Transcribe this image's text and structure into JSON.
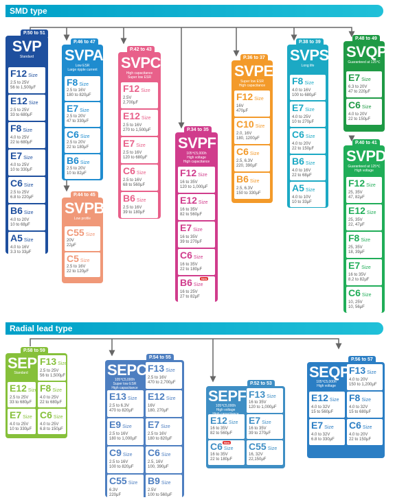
{
  "smd": {
    "title": "SMD type"
  },
  "radial": {
    "title": "Radial lead type"
  },
  "svp": {
    "name": "SVP",
    "pages": "P.50 to 51",
    "desc": "Standard",
    "items": [
      [
        "F12",
        "2.5 to 25V\n56 to 1,500μF"
      ],
      [
        "E12",
        "2.5 to 25V\n33 to 680μF"
      ],
      [
        "F8",
        "4.0 to 25V\n22 to 680μF"
      ],
      [
        "E7",
        "4.0 to 25V\n10 to 330μF"
      ],
      [
        "C6",
        "2.5 to 25V\n6.8 to 220μF"
      ],
      [
        "B6",
        "4.0 to 20V\n10 to 68μF"
      ],
      [
        "A5",
        "4.0 to 16V\n3.3 to 33μF"
      ]
    ]
  },
  "svpa": {
    "name": "SVPA",
    "pages": "P.46 to 47",
    "desc": "Low ESR\nLarge ripple current",
    "items": [
      [
        "F8",
        "2.5 to 16V\n180 to 820μF"
      ],
      [
        "E7",
        "2.5 to 20V\n47 to 330μF"
      ],
      [
        "C6",
        "2.5 to 20V\n22 to 180μF"
      ],
      [
        "B6",
        "2.5 to 20V\n10 to 82μF"
      ]
    ]
  },
  "svpb": {
    "name": "SVPB",
    "pages": "P.44 to 45",
    "desc": "Low profile",
    "items": [
      [
        "C55",
        "20V\n22μF"
      ],
      [
        "C5",
        "2.5 to 16V\n22 to 120μF"
      ]
    ]
  },
  "svpc": {
    "name": "SVPC",
    "pages": "P.42 to 43",
    "desc": "High capacitance\nSuper low ESR",
    "items": [
      [
        "F12",
        "2.5V\n2,700μF"
      ],
      [
        "E12",
        "2.5 to 16V\n270 to 1,500μF"
      ],
      [
        "E7",
        "2.5 to 16V\n120 to 680μF"
      ],
      [
        "C6",
        "2.5 to 16V\n68 to 560μF"
      ],
      [
        "B6",
        "2.5 to 16V\n39 to 180μF"
      ]
    ]
  },
  "svpf": {
    "name": "SVPF",
    "pages": "P.34 to 35",
    "desc": "105℃5,000h\nHigh voltage\nHigh capacitance",
    "new": "New",
    "items": [
      [
        "F12",
        "16 to 35V\n120 to 1,000μF"
      ],
      [
        "E12",
        "16 to 35V\n82 to 560μF"
      ],
      [
        "E7",
        "16 to 35V\n39 to 270μF"
      ],
      [
        "C6",
        "16 to 35V\n22 to 180μF"
      ],
      [
        "B6",
        "16 to 25V\n27 to 82μF"
      ]
    ]
  },
  "svpe": {
    "name": "SVPE",
    "pages": "P.36 to 37",
    "desc": "Super low ESR\nHigh capacitance",
    "items": [
      [
        "F12",
        "16V\n470μF"
      ],
      [
        "C10",
        "2.0, 16V\n180, 1200μF"
      ],
      [
        "C6",
        "2.5, 6.3V\n220, 390μF"
      ],
      [
        "B6",
        "2.5, 6.3V\n150 to 330μF"
      ]
    ]
  },
  "svps": {
    "name": "SVPS",
    "pages": "P.38 to 39",
    "desc": "Long life",
    "items": [
      [
        "F8",
        "4.0 to 16V\n100 to 680μF"
      ],
      [
        "E7",
        "4.0 to 25V\n10 to 270μF"
      ],
      [
        "C6",
        "4.0 to 20V\n22 to 150μF"
      ],
      [
        "B6",
        "4.0 to 16V\n22 to 68μF"
      ],
      [
        "A5",
        "4.0 to 10V\n10 to 33μF"
      ]
    ]
  },
  "svqp": {
    "name": "SVQP",
    "pages": "P.48 to 49",
    "desc": "Guaranteed at 125℃",
    "items": [
      [
        "E7",
        "6.3 to 20V\n47 to 220μF"
      ],
      [
        "C6",
        "4.0 to 20V\n22 to 150μF"
      ]
    ]
  },
  "svpd": {
    "name": "SVPD",
    "pages": "P.40 to 41",
    "desc": "Guaranteed at 125℃\nHigh voltage",
    "items": [
      [
        "F12",
        "25, 35V\n47, 82μF"
      ],
      [
        "E12",
        "25, 35V\n22, 47μF"
      ],
      [
        "F8",
        "25, 35V\n18, 39μF"
      ],
      [
        "E7",
        "16 to 35V\n8.2 to 82μF"
      ],
      [
        "C6",
        "10, 25V\n10, 56μF"
      ]
    ]
  },
  "sep": {
    "name": "SEP",
    "pages": "P.58 to 59",
    "desc": "Standard",
    "items": [
      [
        "F13",
        "2.5 to 25V\n56 to 1,500μF"
      ],
      [
        "E12",
        "2.5 to 25V\n33 to 680μF"
      ],
      [
        "F8",
        "4.0 to 25V\n22 to 680μF"
      ],
      [
        "E7",
        "4.0 to 25V\n10 to 330μF"
      ],
      [
        "C6",
        "4.0 to 25V\n6.8 to 150μF"
      ]
    ]
  },
  "sepc": {
    "name": "SEPC",
    "pages": "P.54 to 55",
    "desc": "105℃5,000h\nSuper low ESR\nHigh capacitance",
    "items": [
      [
        "F13",
        "2.5 to 16V\n470 to 2,700μF"
      ],
      [
        "E13",
        "2.5 to 6.3V\n470 to 820μF"
      ],
      [
        "E12",
        "16V\n180, 270μF"
      ],
      [
        "E9",
        "2.5 to 16V\n180 to 1,000μF"
      ],
      [
        "E7",
        "2.5 to 16V\n180 to 820μF"
      ],
      [
        "C9",
        "2.5 to 16V\n100 to 820μF"
      ],
      [
        "C6",
        "2.5, 16V\n100, 390μF"
      ],
      [
        "C55",
        "6.3V\n220μF"
      ],
      [
        "B9",
        "2.5V\n100 to 560μF"
      ]
    ]
  },
  "sepf": {
    "name": "SEPF",
    "pages": "P.52 to 53",
    "desc": "105℃5,000h\nHigh voltage\nHigh capacitance",
    "new": "New",
    "items": [
      [
        "F13",
        "16 to 35V\n120 to 1,000μF"
      ],
      [
        "E12",
        "16 to 35V\n82 to 560μF"
      ],
      [
        "E7",
        "16 to 35V\n39 to 270μF"
      ],
      [
        "C6",
        "16 to 35V\n22 to 180μF"
      ],
      [
        "C55",
        "16, 32V\n22,150μF"
      ]
    ]
  },
  "seqp": {
    "name": "SEQP",
    "pages": "P.56 to 57",
    "desc": "105℃5,000h\nHigh voltage",
    "items": [
      [
        "F13",
        "4.0 to 20V\n150 to 1,200μF"
      ],
      [
        "E12",
        "4.0 to 32V\n15 to 560μF"
      ],
      [
        "F8",
        "4.0 to 32V\n15 to 680μF"
      ],
      [
        "E7",
        "4.0 to 32V\n6.8 to 330μF"
      ],
      [
        "C6",
        "4.0 to 20V\n22 to 150μF"
      ]
    ]
  },
  "size_word": "Size",
  "colors": {
    "svp": "#1e4f9e",
    "svpa": "#1f8ccf",
    "svpb": "#f09878",
    "svpc": "#e8608a",
    "svpf": "#d03c8c",
    "svpe": "#f39a2a",
    "svps": "#1ca9c4",
    "svqp": "#1f9a45",
    "svpd": "#20ad58",
    "sep": "#86c03a",
    "sepc": "#4d7ec0",
    "sepf": "#3e8ec4",
    "seqp": "#2b7ec4"
  }
}
